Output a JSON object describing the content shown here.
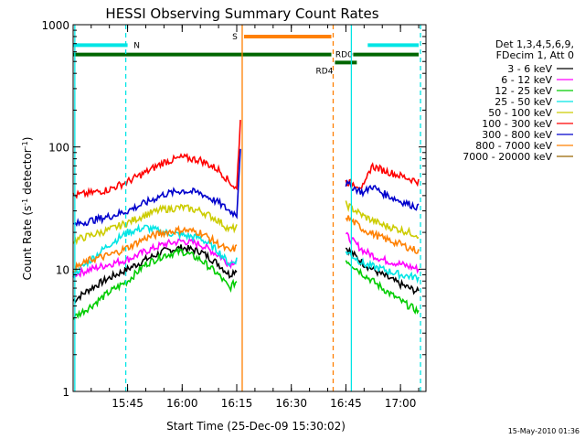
{
  "chart_data": {
    "type": "line",
    "title": "HESSI Observing Summary Count Rates",
    "xlabel": "Start Time (25-Dec-09 15:30:02)",
    "ylabel_parts": {
      "base": "Count Rate (s",
      "sup1": "-1",
      "mid": " detector",
      "sup2": "-1",
      "end": ")"
    },
    "y_scale": "log",
    "ylim": [
      1,
      1000
    ],
    "xlim": [
      "15:30:02",
      "17:07:00"
    ],
    "x_ticks": [
      "15:45",
      "16:00",
      "16:15",
      "16:30",
      "16:45",
      "17:00"
    ],
    "y_ticks": [
      "1",
      "10",
      "100",
      "1000"
    ],
    "legend": {
      "placement": "right",
      "header": [
        "Det 1,3,4,5,6,9,",
        "FDecim 1, Att 0"
      ],
      "entries": [
        {
          "label": "3 - 6 keV",
          "color": "#000000"
        },
        {
          "label": "6 - 12 keV",
          "color": "#ff00ff"
        },
        {
          "label": "12 - 25 keV",
          "color": "#00cc00"
        },
        {
          "label": "25 - 50 keV",
          "color": "#00e5e5"
        },
        {
          "label": "50 - 100 keV",
          "color": "#cccc00"
        },
        {
          "label": "100 - 300 keV",
          "color": "#ff0000"
        },
        {
          "label": "300 - 800 keV",
          "color": "#0000cc"
        },
        {
          "label": "800 - 7000 keV",
          "color": "#ff8000"
        },
        {
          "label": "7000 - 20000 keV",
          "color": "#996600"
        }
      ]
    },
    "series": [
      {
        "name": "3 - 6 keV",
        "color": "#000000",
        "segments": [
          {
            "x": [
              "15:30",
              "15:35",
              "15:40",
              "15:45",
              "15:50",
              "15:55",
              "16:00",
              "16:05",
              "16:10",
              "16:13",
              "16:15"
            ],
            "y": [
              5.5,
              7,
              8.5,
              10,
              12,
              14,
              15,
              14,
              11,
              9,
              10
            ]
          },
          {
            "x": [
              "16:45",
              "16:50",
              "16:55",
              "17:00",
              "17:05"
            ],
            "y": [
              15,
              11,
              9,
              7.5,
              6.5
            ]
          }
        ]
      },
      {
        "name": "6 - 12 keV",
        "color": "#ff00ff",
        "segments": [
          {
            "x": [
              "15:30",
              "15:35",
              "15:40",
              "15:45",
              "15:50",
              "15:55",
              "16:00",
              "16:05",
              "16:10",
              "16:13",
              "16:15"
            ],
            "y": [
              9,
              10,
              11,
              12,
              14,
              16,
              17,
              16,
              13,
              11,
              12
            ]
          },
          {
            "x": [
              "16:45",
              "16:50",
              "16:55",
              "17:00",
              "17:05"
            ],
            "y": [
              19,
              14,
              12,
              11,
              10
            ]
          }
        ]
      },
      {
        "name": "12 - 25 keV",
        "color": "#00cc00",
        "segments": [
          {
            "x": [
              "15:30",
              "15:35",
              "15:40",
              "15:45",
              "15:50",
              "15:55",
              "16:00",
              "16:05",
              "16:10",
              "16:13",
              "16:15"
            ],
            "y": [
              4,
              5,
              6.5,
              8,
              11,
              13,
              14,
              12,
              9,
              7,
              8
            ]
          },
          {
            "x": [
              "16:45",
              "16:50",
              "16:55",
              "17:00",
              "17:05"
            ],
            "y": [
              12,
              9,
              7,
              5.5,
              4.5
            ]
          }
        ]
      },
      {
        "name": "25 - 50 keV",
        "color": "#00e5e5",
        "segments": [
          {
            "x": [
              "15:30",
              "15:35",
              "15:40",
              "15:45",
              "15:50",
              "15:55",
              "16:00",
              "16:05",
              "16:10",
              "16:13",
              "16:15"
            ],
            "y": [
              9,
              12,
              16,
              20,
              22,
              20,
              19,
              18,
              14,
              11,
              12
            ]
          },
          {
            "x": [
              "16:45",
              "16:50",
              "16:55",
              "17:00",
              "17:05"
            ],
            "y": [
              14,
              11,
              10,
              9,
              8.5
            ]
          }
        ]
      },
      {
        "name": "50 - 100 keV",
        "color": "#cccc00",
        "segments": [
          {
            "x": [
              "15:30",
              "15:35",
              "15:40",
              "15:45",
              "15:50",
              "15:55",
              "16:00",
              "16:05",
              "16:10",
              "16:13",
              "16:15"
            ],
            "y": [
              17,
              19,
              21,
              24,
              28,
              31,
              32,
              30,
              25,
              21,
              22
            ]
          },
          {
            "x": [
              "16:45",
              "16:50",
              "16:55",
              "17:00",
              "17:05"
            ],
            "y": [
              34,
              27,
              23,
              21,
              19
            ]
          }
        ]
      },
      {
        "name": "100 - 300 keV",
        "color": "#ff0000",
        "segments": [
          {
            "x": [
              "15:30",
              "15:35",
              "15:40",
              "15:45",
              "15:50",
              "15:55",
              "16:00",
              "16:05",
              "16:10",
              "16:13",
              "16:15",
              "16:16"
            ],
            "y": [
              40,
              42,
              45,
              52,
              62,
              75,
              82,
              78,
              65,
              52,
              45,
              170
            ]
          },
          {
            "x": [
              "16:45",
              "16:50",
              "16:52",
              "16:55",
              "17:00",
              "17:05"
            ],
            "y": [
              52,
              47,
              70,
              65,
              58,
              52
            ]
          }
        ]
      },
      {
        "name": "300 - 800 keV",
        "color": "#0000cc",
        "segments": [
          {
            "x": [
              "15:30",
              "15:35",
              "15:40",
              "15:45",
              "15:50",
              "15:55",
              "16:00",
              "16:05",
              "16:10",
              "16:13",
              "16:15",
              "16:16"
            ],
            "y": [
              23,
              25,
              27,
              30,
              35,
              41,
              44,
              42,
              35,
              30,
              28,
              100
            ]
          },
          {
            "x": [
              "16:45",
              "16:50",
              "16:52",
              "16:55",
              "17:00",
              "17:05"
            ],
            "y": [
              50,
              42,
              48,
              42,
              36,
              32
            ]
          }
        ]
      },
      {
        "name": "800 - 7000 keV",
        "color": "#ff8000",
        "segments": [
          {
            "x": [
              "15:30",
              "15:35",
              "15:40",
              "15:45",
              "15:50",
              "15:55",
              "16:00",
              "16:05",
              "16:10",
              "16:13",
              "16:15"
            ],
            "y": [
              10,
              12,
              13,
              15,
              18,
              20,
              21,
              20,
              16,
              14,
              15
            ]
          },
          {
            "x": [
              "16:45",
              "16:50",
              "16:55",
              "17:00",
              "17:05"
            ],
            "y": [
              27,
              21,
              18,
              16,
              14
            ]
          }
        ]
      },
      {
        "name": "7000 - 20000 keV",
        "color": "#996600",
        "segments": []
      }
    ],
    "attenuator_bars": [
      {
        "label": "N",
        "color": "#00e5e5",
        "y": 680,
        "spans": [
          [
            "15:30",
            "15:45"
          ],
          [
            "16:51",
            "17:05"
          ]
        ]
      },
      {
        "label": "S",
        "color": "#ff8000",
        "y": 800,
        "spans": [
          [
            "16:17",
            "16:41"
          ]
        ]
      },
      {
        "label": "RD0",
        "color": "#006600",
        "y": 570,
        "spans": [
          [
            "15:30",
            "16:41"
          ],
          [
            "16:47",
            "17:05"
          ]
        ]
      },
      {
        "label": "RD4",
        "color": "#006600",
        "y": 490,
        "spans": [
          [
            "16:42",
            "16:48"
          ]
        ]
      }
    ],
    "markers": [
      {
        "x": "15:30:30",
        "color": "#00e5e5",
        "style": "solid"
      },
      {
        "x": "15:44:30",
        "color": "#00e5e5",
        "style": "dashed"
      },
      {
        "x": "16:16:30",
        "color": "#ff8000",
        "style": "solid"
      },
      {
        "x": "16:41:30",
        "color": "#ff8000",
        "style": "dashed"
      },
      {
        "x": "16:46:30",
        "color": "#00e5e5",
        "style": "solid"
      },
      {
        "x": "17:05:30",
        "color": "#00e5e5",
        "style": "dashed"
      }
    ]
  },
  "footer_timestamp": "15-May-2010 01:36"
}
